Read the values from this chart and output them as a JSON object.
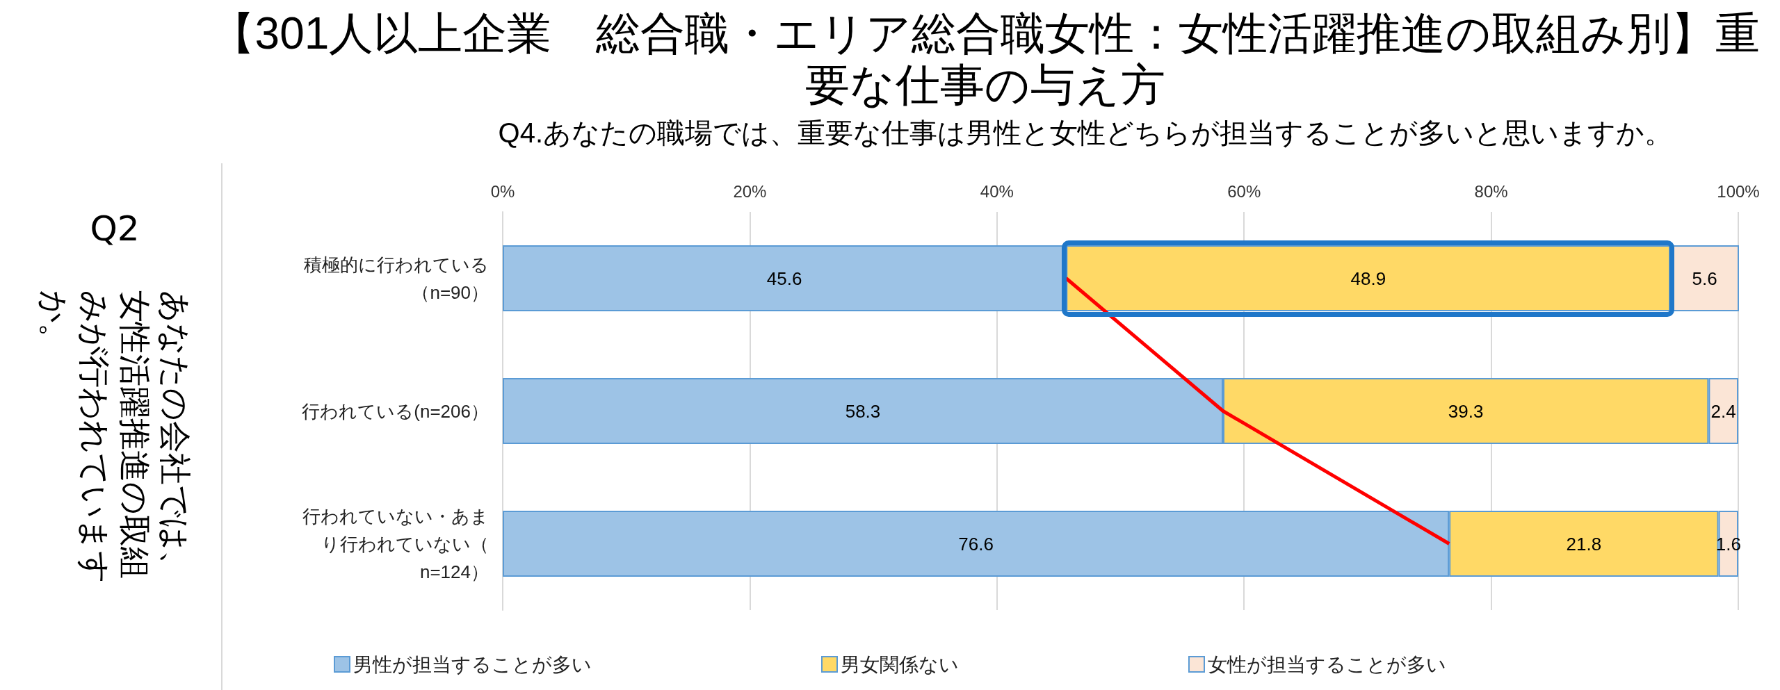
{
  "chart_data": {
    "type": "bar",
    "orientation": "horizontal",
    "stacked": true,
    "title": "【301人以上企業　総合職・エリア総合職女性：女性活躍推進の取組み別】重要な仕事の与え方",
    "subtitle": "Q4.あなたの職場では、重要な仕事は男性と女性どちらが担当することが多いと思いますか。",
    "ylabel": "あなたの会社では、女性活躍推進の取組みが行われていますか。",
    "annotations": [
      "Q2"
    ],
    "categories": [
      "積極的に行われている（n=90）",
      "行われている(n=206）",
      "行われていない・あまり行われていない（n=124）"
    ],
    "series": [
      {
        "name": "男性が担当することが多い",
        "color": "#9dc3e6",
        "values": [
          45.6,
          58.3,
          76.6
        ],
        "value_labels": [
          "45.6",
          "58.3",
          "76.6"
        ]
      },
      {
        "name": "男女関係ない",
        "color": "#ffd966",
        "values": [
          48.9,
          39.3,
          21.8
        ],
        "value_labels": [
          "48.9",
          "39.3",
          "21.8"
        ]
      },
      {
        "name": "女性が担当することが多い",
        "color": "#fbe5d6",
        "values": [
          5.6,
          2.4,
          1.6
        ],
        "value_labels": [
          "5.6",
          "2.4",
          "1.6"
        ]
      },
      {
        "type": "line",
        "color": "#ff0000",
        "marker": "none",
        "values": [
          45.6,
          58.3,
          76.6
        ]
      }
    ],
    "xlim": [
      0,
      100
    ],
    "xticks": [
      {
        "value": 0,
        "label": "0%"
      },
      {
        "value": 20,
        "label": "20%"
      },
      {
        "value": 40,
        "label": "40%"
      },
      {
        "value": 60,
        "label": "60%"
      },
      {
        "value": 80,
        "label": "80%"
      },
      {
        "value": 100,
        "label": "100%"
      }
    ],
    "grid": "x",
    "legend": "bottom"
  }
}
